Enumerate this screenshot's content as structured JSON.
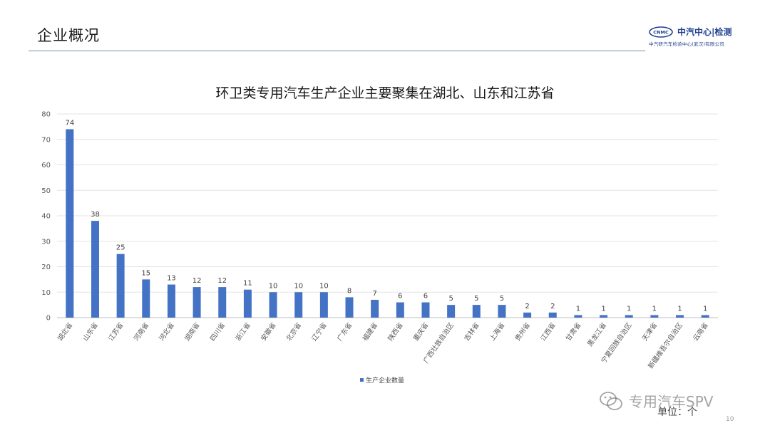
{
  "header": {
    "title": "企业概况",
    "brand_name": "中汽中心|检测",
    "brand_sub": "中汽研汽车检验中心(武汉)有限公司"
  },
  "chart_data": {
    "type": "bar",
    "title": "环卫类专用汽车生产企业主要聚集在湖北、山东和江苏省",
    "categories": [
      "湖北省",
      "山东省",
      "江苏省",
      "河南省",
      "河北省",
      "湖南省",
      "四川省",
      "浙江省",
      "安徽省",
      "北京省",
      "辽宁省",
      "广东省",
      "福建省",
      "陕西省",
      "重庆省",
      "广西壮族自治区",
      "吉林省",
      "上海省",
      "贵州省",
      "江西省",
      "甘肃省",
      "黑龙江省",
      "宁夏回族自治区",
      "天津省",
      "新疆维吾尔自治区",
      "云南省"
    ],
    "series": [
      {
        "name": "生产企业数量",
        "values": [
          74,
          38,
          25,
          15,
          13,
          12,
          12,
          11,
          10,
          10,
          10,
          8,
          7,
          6,
          6,
          5,
          5,
          5,
          2,
          2,
          1,
          1,
          1,
          1,
          1,
          1
        ]
      }
    ],
    "ylim": [
      0,
      80
    ],
    "yticks": [
      0,
      10,
      20,
      30,
      40,
      50,
      60,
      70,
      80
    ],
    "grid": true,
    "legend_position": "bottom",
    "bar_color": "#4472C4"
  },
  "footer": {
    "unit_label": "单位：个",
    "watermark": "专用汽车SPV",
    "page_number": "10"
  }
}
